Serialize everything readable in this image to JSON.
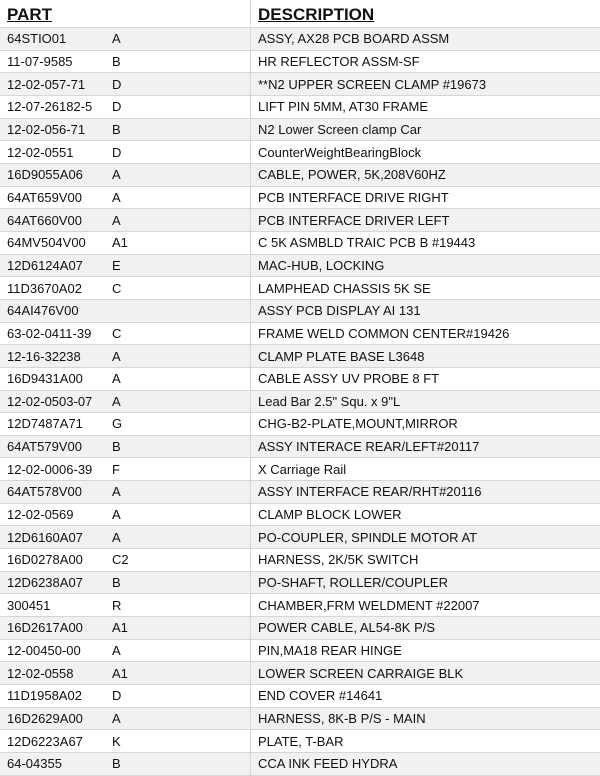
{
  "header": {
    "part": "PART",
    "description": "DESCRIPTION"
  },
  "rows": [
    {
      "part": "64STIO01",
      "rev": "A",
      "description": "ASSY, AX28 PCB BOARD ASSM"
    },
    {
      "part": "11-07-9585",
      "rev": "B",
      "description": "HR REFLECTOR ASSM-SF"
    },
    {
      "part": "12-02-057-71",
      "rev": "D",
      "description": "**N2 UPPER SCREEN CLAMP #19673"
    },
    {
      "part": "12-07-26182-5",
      "rev": "D",
      "description": "LIFT PIN 5MM, AT30 FRAME"
    },
    {
      "part": "12-02-056-71",
      "rev": "B",
      "description": "N2 Lower Screen clamp Car"
    },
    {
      "part": "12-02-0551",
      "rev": "D",
      "description": "CounterWeightBearingBlock"
    },
    {
      "part": "16D9055A06",
      "rev": "A",
      "description": "CABLE, POWER, 5K,208V60HZ"
    },
    {
      "part": "64AT659V00",
      "rev": "A",
      "description": "PCB INTERFACE DRIVE RIGHT"
    },
    {
      "part": "64AT660V00",
      "rev": "A",
      "description": "PCB INTERFACE DRIVER LEFT"
    },
    {
      "part": "64MV504V00",
      "rev": "A1",
      "description": "C 5K ASMBLD TRAIC PCB B #19443"
    },
    {
      "part": "12D6124A07",
      "rev": "E",
      "description": "MAC-HUB, LOCKING"
    },
    {
      "part": "11D3670A02",
      "rev": "C",
      "description": "LAMPHEAD CHASSIS 5K SE"
    },
    {
      "part": "64AI476V00",
      "rev": "",
      "description": "ASSY PCB DISPLAY AI 131"
    },
    {
      "part": "63-02-0411-39",
      "rev": "C",
      "description": "FRAME WELD COMMON CENTER#19426"
    },
    {
      "part": "12-16-32238",
      "rev": "A",
      "description": "CLAMP PLATE BASE L3648"
    },
    {
      "part": "16D9431A00",
      "rev": "A",
      "description": "CABLE ASSY UV PROBE 8 FT"
    },
    {
      "part": "12-02-0503-07",
      "rev": "A",
      "description": "Lead Bar 2.5\" Squ. x 9\"L"
    },
    {
      "part": "12D7487A71",
      "rev": "G",
      "description": "CHG-B2-PLATE,MOUNT,MIRROR"
    },
    {
      "part": "64AT579V00",
      "rev": "B",
      "description": "ASSY INTERACE REAR/LEFT#20117"
    },
    {
      "part": "12-02-0006-39",
      "rev": "F",
      "description": "X Carriage Rail"
    },
    {
      "part": "64AT578V00",
      "rev": "A",
      "description": "ASSY INTERFACE REAR/RHT#20116"
    },
    {
      "part": "12-02-0569",
      "rev": "A",
      "description": "CLAMP BLOCK LOWER"
    },
    {
      "part": "12D6160A07",
      "rev": "A",
      "description": "PO-COUPLER, SPINDLE MOTOR AT"
    },
    {
      "part": "16D0278A00",
      "rev": "C2",
      "description": "HARNESS, 2K/5K SWITCH"
    },
    {
      "part": "12D6238A07",
      "rev": "B",
      "description": "PO-SHAFT, ROLLER/COUPLER"
    },
    {
      "part": "300451",
      "rev": "R",
      "description": "CHAMBER,FRM WELDMENT #22007"
    },
    {
      "part": "16D2617A00",
      "rev": "A1",
      "description": "POWER CABLE, AL54-8K P/S"
    },
    {
      "part": "12-00450-00",
      "rev": "A",
      "description": "PIN,MA18 REAR HINGE"
    },
    {
      "part": "12-02-0558",
      "rev": "A1",
      "description": "LOWER SCREEN CARRAIGE BLK"
    },
    {
      "part": "11D1958A02",
      "rev": "D",
      "description": "END COVER #14641"
    },
    {
      "part": "16D2629A00",
      "rev": "A",
      "description": "HARNESS, 8K-B P/S - MAIN"
    },
    {
      "part": "12D6223A67",
      "rev": "K",
      "description": "PLATE, T-BAR"
    },
    {
      "part": "64-04355",
      "rev": "B",
      "description": "CCA INK FEED HYDRA"
    }
  ]
}
